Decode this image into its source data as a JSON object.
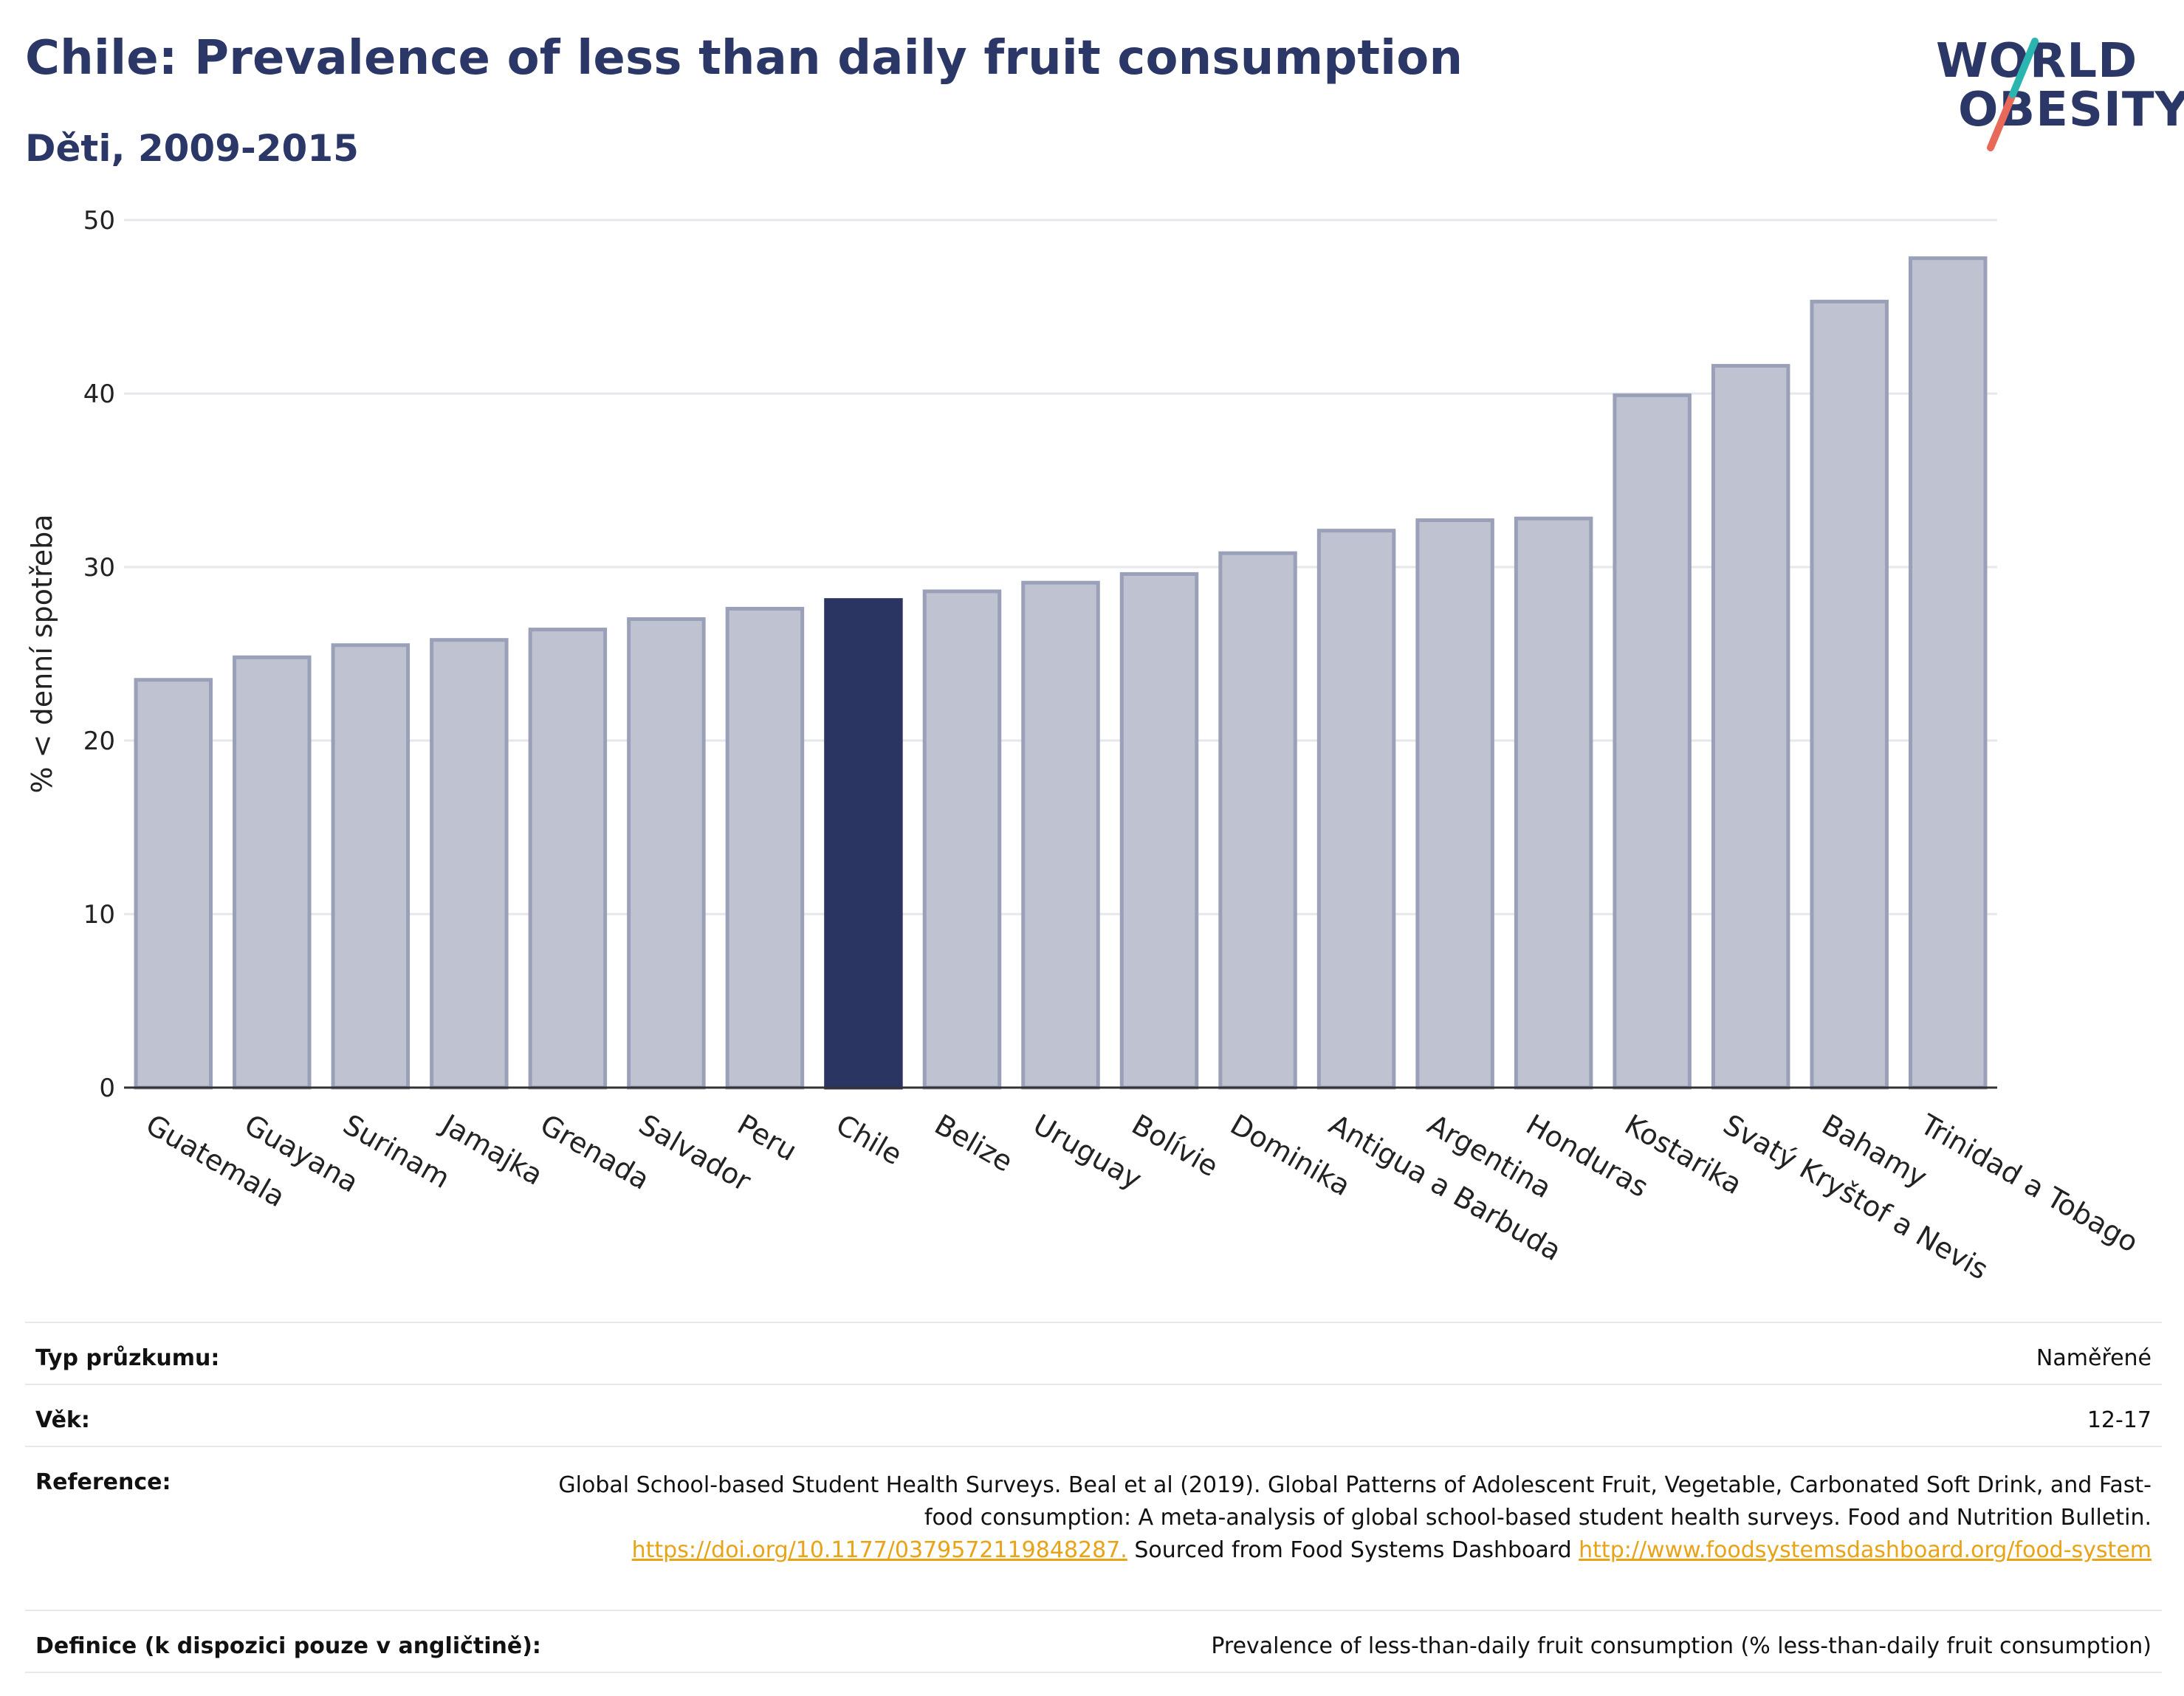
{
  "header": {
    "title": "Chile: Prevalence of less than daily fruit consumption",
    "subtitle": "Děti, 2009-2015"
  },
  "logo": {
    "line1": "WORLD",
    "line2": "OBESITY",
    "colors": {
      "text": "#2b3766",
      "slash_top": "#2bb5b0",
      "slash_bottom": "#e8685a"
    }
  },
  "colors": {
    "bar_default": "#bfc2d0",
    "bar_default_border": "#9aa0b8",
    "bar_highlight": "#2b3561",
    "axis": "#333333",
    "grid": "#e6e7ec"
  },
  "chart_data": {
    "type": "bar",
    "title": "",
    "ylabel": "% < denní spotřeba",
    "xlabel": "",
    "ylim": [
      0,
      50
    ],
    "yticks": [
      0,
      10,
      20,
      30,
      40,
      50
    ],
    "grid": true,
    "highlight": "Chile",
    "categories": [
      "Guatemala",
      "Guayana",
      "Surinam",
      "Jamajka",
      "Grenada",
      "Salvador",
      "Peru",
      "Chile",
      "Belize",
      "Uruguay",
      "Bolívie",
      "Dominika",
      "Antigua a Barbuda",
      "Argentina",
      "Honduras",
      "Kostarika",
      "Svatý Kryštof a Nevis",
      "Bahamy",
      "Trinidad a Tobago"
    ],
    "values": [
      23.5,
      24.8,
      25.5,
      25.8,
      26.4,
      27.0,
      27.6,
      28.1,
      28.6,
      29.1,
      29.6,
      30.8,
      32.1,
      32.7,
      32.8,
      39.9,
      41.6,
      45.3,
      47.8
    ]
  },
  "meta": {
    "survey_label": "Typ průzkumu:",
    "survey_value": "Naměřené",
    "age_label": "Věk:",
    "age_value": "12-17",
    "reference_label": "Reference:",
    "reference_text1": "Global School-based Student Health Surveys. Beal et al (2019). Global Patterns of Adolescent Fruit, Vegetable, Carbonated Soft Drink, and Fast-food consumption: A meta-analysis of global school-based student health surveys. Food and Nutrition Bulletin.",
    "reference_link1": "https://doi.org/10.1177/0379572119848287.",
    "reference_text2": " Sourced from Food Systems Dashboard ",
    "reference_link2": "http://www.foodsystemsdashboard.org/food-system",
    "definition_label": "Definice (k dispozici pouze v angličtině):",
    "definition_value": "Prevalence of less-than-daily fruit consumption (% less-than-daily fruit consumption)"
  }
}
